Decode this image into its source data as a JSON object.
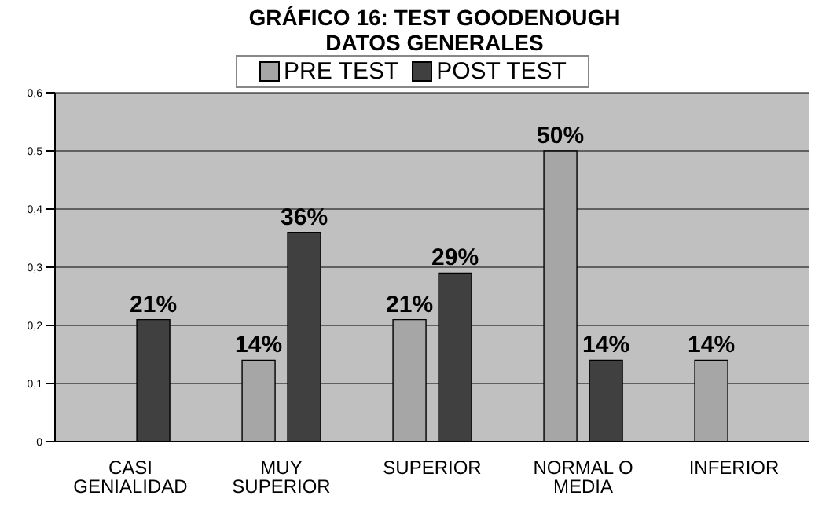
{
  "chart_data": {
    "type": "bar",
    "title": "GRÁFICO 16: TEST GOODENOUGH",
    "subtitle": "DATOS GENERALES",
    "categories": [
      "CASI GENIALIDAD",
      "MUY SUPERIOR",
      "SUPERIOR",
      "NORMAL O MEDIA",
      "INFERIOR"
    ],
    "series": [
      {
        "name": "PRE TEST",
        "color": "#a6a6a6",
        "values": [
          null,
          0.14,
          0.21,
          0.5,
          0.14
        ],
        "value_labels": [
          null,
          "14%",
          "21%",
          "50%",
          "14%"
        ]
      },
      {
        "name": "POST TEST",
        "color": "#404040",
        "values": [
          0.21,
          0.36,
          0.29,
          0.14,
          null
        ],
        "value_labels": [
          "21%",
          "36%",
          "29%",
          "14%",
          null
        ]
      }
    ],
    "ylim": [
      0,
      0.6
    ],
    "yticks": [
      0,
      {
        "value": 0.1,
        "label": "0,1"
      },
      {
        "value": 0.2,
        "label": "0,2"
      },
      {
        "value": 0.3,
        "label": "0,3"
      },
      {
        "value": 0.4,
        "label": "0,4"
      },
      {
        "value": 0.5,
        "label": "0,5"
      },
      {
        "value": 0.6,
        "label": "0,6"
      }
    ],
    "grid": "y",
    "legend": "top"
  }
}
